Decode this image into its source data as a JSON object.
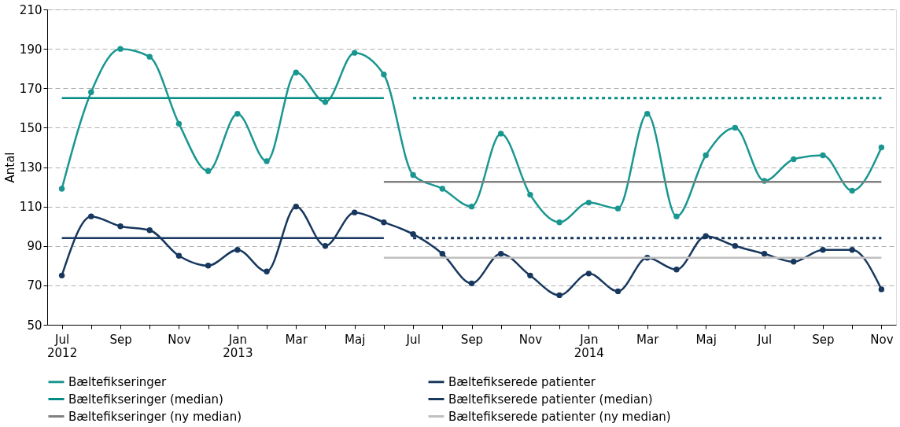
{
  "chart_data": {
    "type": "line",
    "ylabel": "Antal",
    "categories": [
      "Jul\n2012",
      null,
      "Sep",
      null,
      "Nov",
      null,
      "Jan\n2013",
      null,
      "Mar",
      null,
      "Maj",
      null,
      "Jul",
      null,
      "Sep",
      null,
      "Nov",
      null,
      "Jan\n2014",
      null,
      "Mar",
      null,
      "Maj",
      null,
      "Jul",
      null,
      "Sep",
      null,
      "Nov"
    ],
    "ylim": [
      50,
      210
    ],
    "yticks": [
      50,
      70,
      90,
      110,
      130,
      150,
      170,
      190,
      210
    ],
    "grid": "y",
    "legend": "bottom",
    "series": [
      {
        "name": "Bæltefikseringer",
        "color": "#1a9690",
        "marker": "circle",
        "line_style": "solid",
        "values": [
          119,
          168,
          190,
          186,
          152,
          128,
          157,
          133,
          178,
          163,
          188,
          177,
          126,
          119,
          110,
          147,
          116,
          102,
          112,
          109,
          157,
          105,
          136,
          150,
          123,
          134,
          136,
          118,
          140
        ]
      },
      {
        "name": "Bæltefikserede patienter",
        "color": "#17375e",
        "marker": "circle",
        "line_style": "solid",
        "values": [
          75,
          105,
          100,
          98,
          85,
          80,
          88,
          77,
          110,
          90,
          107,
          102,
          96,
          86,
          71,
          86,
          75,
          65,
          76,
          67,
          84,
          78,
          95,
          90,
          86,
          82,
          88,
          88,
          68
        ]
      },
      {
        "name": "Bæltefikseringer (median)",
        "color": "#008c84",
        "marker": "none",
        "line_style": "solid",
        "values": [
          165,
          165,
          165,
          165,
          165,
          165,
          165,
          165,
          165,
          165,
          165,
          165,
          null,
          null,
          null,
          null,
          null,
          null,
          null,
          null,
          null,
          null,
          null,
          null,
          null,
          null,
          null,
          null,
          null
        ]
      },
      {
        "name": "Bæltefikserede patienter (median)",
        "color": "#17375e",
        "marker": "none",
        "line_style": "solid",
        "values": [
          94,
          94,
          94,
          94,
          94,
          94,
          94,
          94,
          94,
          94,
          94,
          94,
          null,
          null,
          null,
          null,
          null,
          null,
          null,
          null,
          null,
          null,
          null,
          null,
          null,
          null,
          null,
          null,
          null
        ]
      },
      {
        "name": "Bæltefikseringer (ny median)",
        "color": "#808080",
        "marker": "none",
        "line_style": "solid",
        "values": [
          null,
          null,
          null,
          null,
          null,
          null,
          null,
          null,
          null,
          null,
          null,
          122.5,
          122.5,
          122.5,
          122.5,
          122.5,
          122.5,
          122.5,
          122.5,
          122.5,
          122.5,
          122.5,
          122.5,
          122.5,
          122.5,
          122.5,
          122.5,
          122.5,
          122.5
        ]
      },
      {
        "name": "Bæltefikserede patienter (ny median)",
        "color": "#c0c0c0",
        "marker": "none",
        "line_style": "solid",
        "values": [
          null,
          null,
          null,
          null,
          null,
          null,
          null,
          null,
          null,
          null,
          null,
          84,
          84,
          84,
          84,
          84,
          84,
          84,
          84,
          84,
          84,
          84,
          84,
          84,
          84,
          84,
          84,
          84,
          84
        ]
      },
      {
        "color": "#008c84",
        "marker": "none",
        "line_style": "dotted",
        "values": [
          null,
          null,
          null,
          null,
          null,
          null,
          null,
          null,
          null,
          null,
          null,
          null,
          165,
          165,
          165,
          165,
          165,
          165,
          165,
          165,
          165,
          165,
          165,
          165,
          165,
          165,
          165,
          165,
          165
        ]
      },
      {
        "color": "#17375e",
        "marker": "none",
        "line_style": "dotted",
        "values": [
          null,
          null,
          null,
          null,
          null,
          null,
          null,
          null,
          null,
          null,
          null,
          null,
          94,
          94,
          94,
          94,
          94,
          94,
          94,
          94,
          94,
          94,
          94,
          94,
          94,
          94,
          94,
          94,
          94
        ]
      }
    ]
  }
}
